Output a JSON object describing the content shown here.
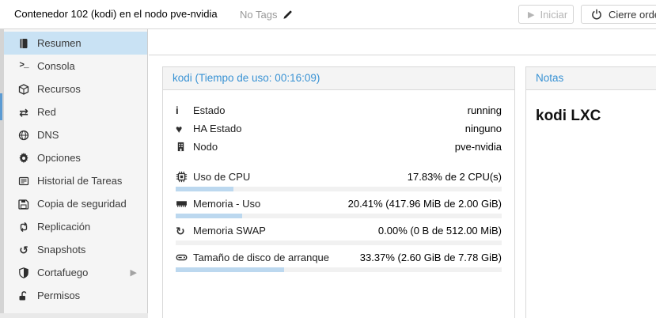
{
  "header": {
    "title": "Contenedor 102 (kodi) en el nodo pve-nvidia",
    "tags_label": "No Tags",
    "start_label": "Iniciar",
    "shutdown_label": "Cierre ordena"
  },
  "sidebar": {
    "items": [
      {
        "label": "Resumen",
        "icon": "book-icon",
        "selected": true
      },
      {
        "label": "Consola",
        "icon": "terminal-icon",
        "selected": false
      },
      {
        "label": "Recursos",
        "icon": "cube-icon",
        "selected": false
      },
      {
        "label": "Red",
        "icon": "network-icon",
        "selected": false
      },
      {
        "label": "DNS",
        "icon": "globe-icon",
        "selected": false
      },
      {
        "label": "Opciones",
        "icon": "gear-icon",
        "selected": false
      },
      {
        "label": "Historial de Tareas",
        "icon": "task-list-icon",
        "selected": false
      },
      {
        "label": "Copia de seguridad",
        "icon": "backup-icon",
        "selected": false
      },
      {
        "label": "Replicación",
        "icon": "replication-icon",
        "selected": false
      },
      {
        "label": "Snapshots",
        "icon": "snapshots-icon",
        "selected": false
      },
      {
        "label": "Cortafuego",
        "icon": "firewall-icon",
        "selected": false,
        "has_submenu": true
      },
      {
        "label": "Permisos",
        "icon": "permissions-icon",
        "selected": false
      }
    ]
  },
  "status_panel": {
    "title": "kodi (Tiempo de uso: 00:16:09)",
    "rows": [
      {
        "label": "Estado",
        "icon": "info-icon",
        "value": "running"
      },
      {
        "label": "HA Estado",
        "icon": "heartbeat-icon",
        "value": "ninguno"
      },
      {
        "label": "Nodo",
        "icon": "node-icon",
        "value": "pve-nvidia"
      }
    ],
    "usage": [
      {
        "label": "Uso de CPU",
        "icon": "cpu-icon",
        "value": "17.83% de 2 CPU(s)",
        "percent": 17.83
      },
      {
        "label": "Memoria - Uso",
        "icon": "memory-icon",
        "value": "20.41% (417.96 MiB de 2.00 GiB)",
        "percent": 20.41
      },
      {
        "label": "Memoria SWAP",
        "icon": "swap-icon",
        "value": "0.00% (0 B de 512.00 MiB)",
        "percent": 0
      },
      {
        "label": "Tamaño de disco de arranque",
        "icon": "disk-icon",
        "value": "33.37% (2.60 GiB de 7.78 GiB)",
        "percent": 33.37
      }
    ]
  },
  "notes_panel": {
    "title": "Notas",
    "content": "kodi LXC"
  },
  "colors": {
    "accent_blue": "#3892d4",
    "selection_blue": "#c9e2f4",
    "progress_fill": "#bcd8ef",
    "tree_selection": "#5b9bd3",
    "panel_border": "#d9d9d9",
    "sidebar_bg": "#f5f5f5"
  }
}
